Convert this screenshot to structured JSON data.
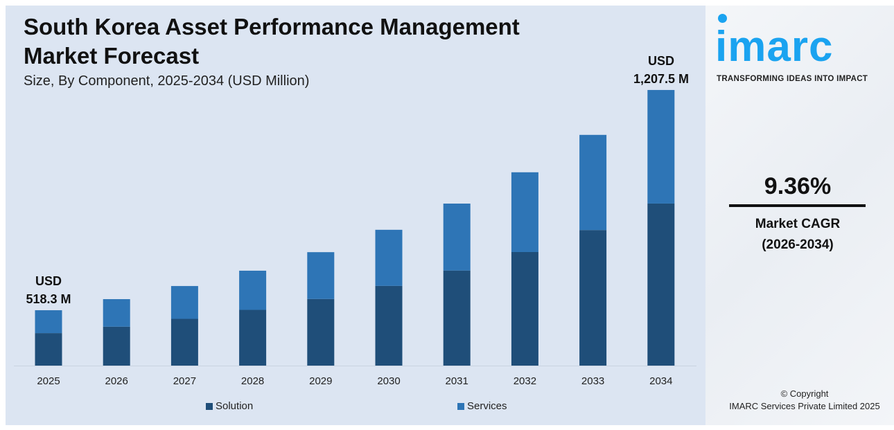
{
  "chart_data": {
    "type": "bar",
    "stacked": true,
    "title": "South Korea Asset Performance Management Market Forecast",
    "subtitle": "Size, By Component, 2025-2034 (USD Million)",
    "categories": [
      "2025",
      "2026",
      "2027",
      "2028",
      "2029",
      "2030",
      "2031",
      "2032",
      "2033",
      "2034"
    ],
    "series": [
      {
        "name": "Solution",
        "color": "#1f4e79",
        "values": [
          304,
          324,
          349,
          377,
          411,
          452,
          500,
          558,
          627,
          710
        ]
      },
      {
        "name": "Services",
        "color": "#2e75b6",
        "values": [
          214.3,
          229,
          245,
          265,
          289,
          318,
          352,
          392,
          440,
          497.5
        ]
      }
    ],
    "totals": [
      518.3,
      553,
      594,
      642,
      700,
      770,
      852,
      950,
      1067,
      1207.5
    ],
    "annotations": {
      "first": {
        "line1": "USD",
        "line2": "518.3 M"
      },
      "last": {
        "line1": "USD",
        "line2": "1,207.5 M"
      }
    },
    "grid": false,
    "legend": "bottom"
  },
  "brand": {
    "logo": "imarc",
    "tagline": "TRANSFORMING IDEAS INTO IMPACT",
    "color": "#1aa3f0"
  },
  "cagr": {
    "value": "9.36%",
    "label": "Market CAGR",
    "period": "(2026-2034)"
  },
  "footer": {
    "copyright": "© Copyright",
    "company": "IMARC Services Private Limited 2025"
  }
}
